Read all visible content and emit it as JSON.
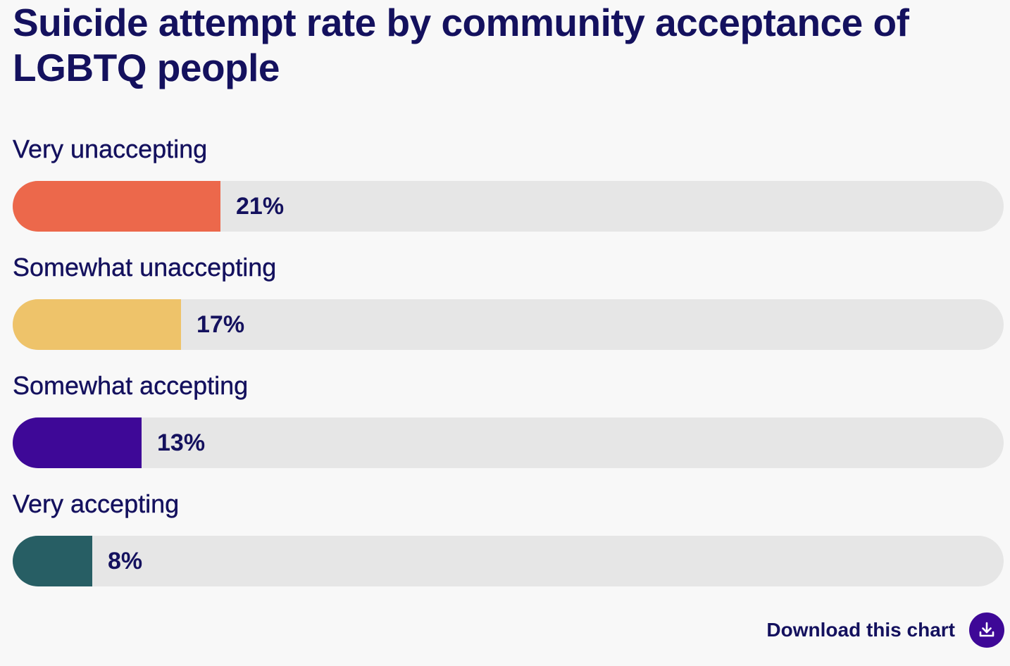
{
  "chart_data": {
    "type": "bar",
    "orientation": "horizontal",
    "title": "Suicide attempt rate by community acceptance of LGBTQ people",
    "categories": [
      "Very unaccepting",
      "Somewhat unaccepting",
      "Somewhat accepting",
      "Very accepting"
    ],
    "values": [
      21,
      17,
      13,
      8
    ],
    "value_labels": [
      "21%",
      "17%",
      "13%",
      "8%"
    ],
    "xlim": [
      0,
      100
    ],
    "colors": [
      "#ec684b",
      "#eec36a",
      "#3e0897",
      "#275e64"
    ],
    "track_color": "#e6e6e6",
    "grid": false,
    "legend": "none"
  },
  "download": {
    "label": "Download this chart",
    "icon": "download-icon",
    "color": "#3e0897"
  }
}
